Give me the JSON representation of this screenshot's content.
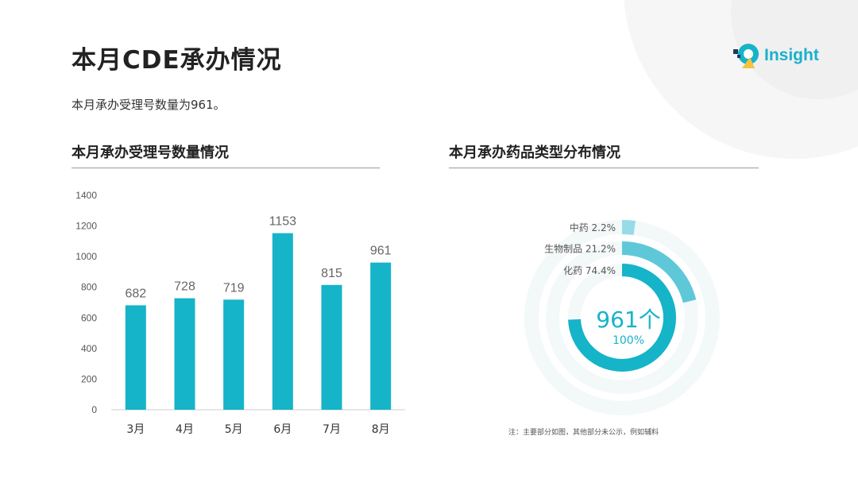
{
  "page": {
    "title": "本月CDE承办情况",
    "summary": "本月承办受理号数量为961。",
    "logo_text": "Insight",
    "note": "注：主要部分如图，其他部分未公示，例如辅料"
  },
  "colors": {
    "accent": "#16b4c9",
    "accent_mid": "#5ec8d8",
    "accent_light": "#96dbe6",
    "logo_dark": "#1d3b5c",
    "logo_yellow": "#f6c343"
  },
  "sections": {
    "bar_title": "本月承办受理号数量情况",
    "donut_title": "本月承办药品类型分布情况"
  },
  "chart_data": [
    {
      "type": "bar",
      "categories": [
        "3月",
        "4月",
        "5月",
        "6月",
        "7月",
        "8月"
      ],
      "values": [
        682,
        728,
        719,
        1153,
        815,
        961
      ],
      "yticks": [
        0,
        200,
        400,
        600,
        800,
        1000,
        1200,
        1400
      ],
      "ylim": [
        0,
        1400
      ],
      "title": "",
      "xlabel": "",
      "ylabel": "",
      "grid": false,
      "color": "#16b4c9"
    },
    {
      "type": "pie",
      "variant": "concentric-rings",
      "center_value": "961个",
      "center_percent": "100%",
      "slices": [
        {
          "label": "中药 2.2%",
          "value": 2.2,
          "color": "#96dbe6"
        },
        {
          "label": "生物制品  21.2%",
          "value": 21.2,
          "color": "#5ec8d8"
        },
        {
          "label": "化药 74.4%",
          "value": 74.4,
          "color": "#16b4c9"
        }
      ]
    }
  ]
}
